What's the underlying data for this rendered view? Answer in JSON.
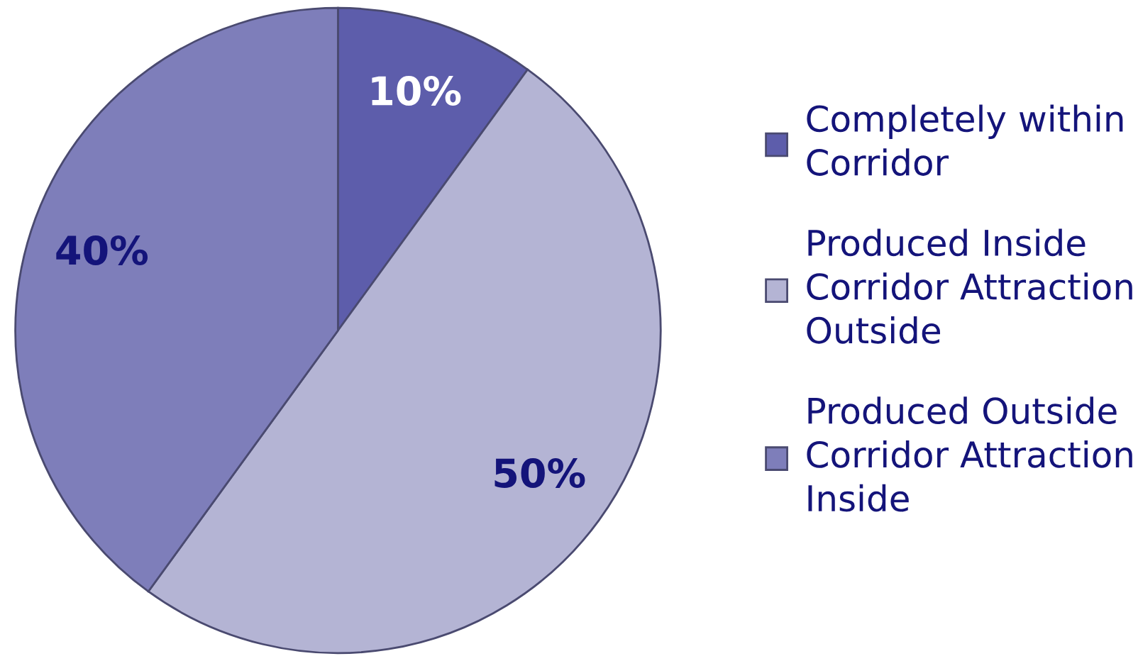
{
  "chart_data": {
    "type": "pie",
    "categories": [
      "Completely within\nCorridor",
      "Produced Inside\nCorridor Attraction\nOutside",
      "Produced Outside\nCorridor Attraction\nInside"
    ],
    "values": [
      10,
      50,
      40
    ],
    "colors": [
      "#5d5dab",
      "#b4b4d4",
      "#7e7eba"
    ],
    "value_labels": [
      "10%",
      "50%",
      "40%"
    ],
    "legend": "right"
  }
}
